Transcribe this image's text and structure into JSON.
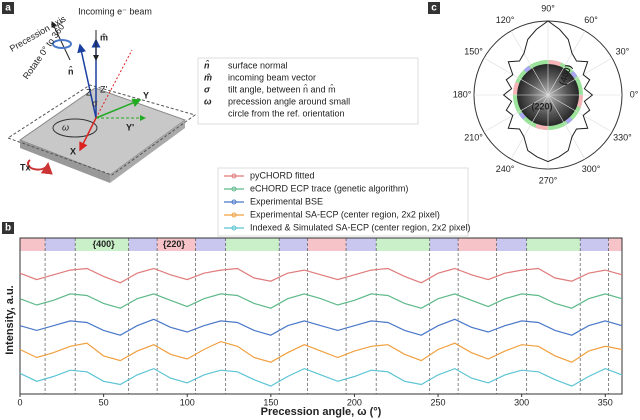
{
  "panels": {
    "a": {
      "label": "a",
      "precession_axis": "Precession axis",
      "rotate": "Rotate 0° to 360°",
      "beam": "Incoming e⁻ beam",
      "n": "n̂",
      "m": "m̂",
      "z": "Z",
      "z2": "Z'",
      "sigma": "σ",
      "x": "X",
      "y": "Y",
      "y2": "Y'",
      "omega": "ω",
      "tx": "Tx",
      "symbol_legend": [
        {
          "symbol": "n̂",
          "text": "surface normal"
        },
        {
          "symbol": "m̂",
          "text": "incoming beam vector"
        },
        {
          "symbol": "σ",
          "text": "tilt angle, between n̂ and m̂"
        },
        {
          "symbol": "ω",
          "text": "precession angle around small"
        },
        {
          "symbol": "",
          "text": "circle from the ref. orientation"
        }
      ]
    },
    "b": {
      "label": "b"
    },
    "c": {
      "label": "c"
    }
  },
  "chart_data": [
    {
      "type": "line",
      "xlabel": "Precession angle, ω (°)",
      "ylabel": "Intensity, a.u.",
      "x": [
        0,
        10,
        20,
        30,
        40,
        50,
        60,
        70,
        80,
        90,
        100,
        110,
        120,
        130,
        140,
        150,
        160,
        170,
        180,
        190,
        200,
        210,
        220,
        230,
        240,
        250,
        260,
        270,
        280,
        290,
        300,
        310,
        320,
        330,
        340,
        350,
        360
      ],
      "xlim": [
        0,
        360
      ],
      "xticks": [
        0,
        50,
        100,
        150,
        200,
        250,
        300,
        350
      ],
      "ylim": [
        0,
        9
      ],
      "series": [
        {
          "name": "pyCHORD fitted",
          "color": "#e07b7b",
          "values": [
            7.6,
            7.2,
            7.5,
            7.8,
            7.9,
            7.4,
            7.0,
            7.6,
            7.9,
            7.5,
            7.2,
            7.6,
            7.8,
            7.9,
            7.3,
            7.1,
            7.6,
            7.8,
            7.5,
            7.2,
            7.5,
            7.8,
            7.9,
            7.4,
            7.0,
            7.6,
            7.9,
            7.5,
            7.2,
            7.6,
            7.8,
            7.9,
            7.3,
            7.1,
            7.6,
            7.8,
            7.5
          ]
        },
        {
          "name": "eCHORD ECP trace (genetic algorithm)",
          "color": "#5fb98a",
          "values": [
            6.0,
            5.6,
            5.9,
            6.3,
            6.2,
            5.7,
            5.4,
            6.0,
            6.3,
            5.9,
            5.5,
            6.0,
            6.3,
            6.2,
            5.7,
            5.4,
            6.0,
            6.3,
            6.0,
            5.6,
            5.9,
            6.3,
            6.2,
            5.7,
            5.4,
            6.0,
            6.3,
            5.9,
            5.5,
            6.0,
            6.3,
            6.2,
            5.7,
            5.4,
            6.0,
            6.3,
            6.0
          ]
        },
        {
          "name": "Experimental BSE",
          "color": "#4a78c8",
          "values": [
            4.3,
            4.0,
            4.3,
            4.6,
            4.5,
            4.0,
            3.7,
            4.3,
            4.7,
            4.2,
            3.9,
            4.3,
            4.6,
            4.5,
            4.0,
            3.7,
            4.3,
            4.6,
            4.3,
            4.0,
            4.3,
            4.6,
            4.5,
            4.0,
            3.7,
            4.3,
            4.7,
            4.2,
            3.9,
            4.3,
            4.6,
            4.5,
            4.0,
            3.7,
            4.3,
            4.6,
            4.3
          ]
        },
        {
          "name": "Experimental SA-ECP (center region, 2x2 pixel)",
          "color": "#f0a040",
          "values": [
            2.8,
            2.3,
            2.6,
            3.0,
            3.2,
            2.4,
            2.1,
            2.7,
            3.1,
            2.5,
            2.2,
            2.8,
            3.3,
            3.0,
            2.3,
            2.0,
            2.6,
            3.1,
            2.7,
            2.3,
            2.7,
            3.0,
            3.1,
            2.5,
            2.1,
            2.8,
            3.2,
            2.6,
            2.2,
            2.7,
            3.1,
            3.0,
            2.4,
            2.0,
            2.7,
            3.0,
            2.8
          ]
        },
        {
          "name": "Indexed & Simulated SA-ECP (center region, 2x2 pixel)",
          "color": "#5cc4d4",
          "values": [
            1.3,
            0.8,
            1.1,
            1.5,
            1.4,
            0.8,
            0.6,
            1.2,
            1.6,
            1.0,
            0.7,
            1.2,
            1.5,
            1.4,
            0.9,
            0.5,
            1.1,
            1.6,
            1.2,
            0.8,
            1.1,
            1.5,
            1.4,
            0.8,
            0.6,
            1.2,
            1.6,
            1.0,
            0.7,
            1.2,
            1.5,
            1.4,
            0.9,
            0.5,
            1.1,
            1.6,
            1.2
          ]
        }
      ],
      "regions": [
        {
          "start": 0,
          "end": 15,
          "color": "#f6c4c8"
        },
        {
          "start": 15,
          "end": 33,
          "color": "#c9c6f0"
        },
        {
          "start": 33,
          "end": 65,
          "color": "#c9f0c9"
        },
        {
          "start": 65,
          "end": 82,
          "color": "#c9c6f0"
        },
        {
          "start": 82,
          "end": 105,
          "color": "#f6c4c8"
        },
        {
          "start": 105,
          "end": 123,
          "color": "#c9c6f0"
        },
        {
          "start": 123,
          "end": 155,
          "color": "#c9f0c9"
        },
        {
          "start": 155,
          "end": 172,
          "color": "#c9c6f0"
        },
        {
          "start": 172,
          "end": 195,
          "color": "#f6c4c8"
        },
        {
          "start": 195,
          "end": 213,
          "color": "#c9c6f0"
        },
        {
          "start": 213,
          "end": 245,
          "color": "#c9f0c9"
        },
        {
          "start": 245,
          "end": 262,
          "color": "#c9c6f0"
        },
        {
          "start": 262,
          "end": 285,
          "color": "#f6c4c8"
        },
        {
          "start": 285,
          "end": 303,
          "color": "#c9c6f0"
        },
        {
          "start": 303,
          "end": 335,
          "color": "#c9f0c9"
        },
        {
          "start": 335,
          "end": 352,
          "color": "#c9c6f0"
        },
        {
          "start": 352,
          "end": 360,
          "color": "#f6c4c8"
        }
      ],
      "vlines": [
        15,
        33,
        65,
        82,
        105,
        123,
        155,
        172,
        195,
        213,
        245,
        262,
        285,
        303,
        335,
        352
      ],
      "annotations": [
        {
          "text": "{400}",
          "x": 50
        },
        {
          "text": "{220}",
          "x": 92
        }
      ]
    },
    {
      "type": "polar",
      "color": "#222222",
      "rlim": [
        0,
        10
      ],
      "theta": [
        0,
        10,
        20,
        30,
        40,
        50,
        60,
        70,
        80,
        90,
        100,
        110,
        120,
        130,
        140,
        150,
        160,
        170,
        180,
        190,
        200,
        210,
        220,
        230,
        240,
        250,
        260,
        270,
        280,
        290,
        300,
        310,
        320,
        330,
        340,
        350
      ],
      "values": [
        6,
        5,
        6,
        5.5,
        7,
        6,
        6.5,
        8,
        9,
        10,
        9,
        8,
        6.5,
        6,
        7,
        5.5,
        6,
        5,
        6,
        5,
        6,
        5.5,
        7,
        6,
        6.5,
        8,
        8.5,
        9,
        8.5,
        8,
        6.5,
        6,
        7,
        5.5,
        6,
        5
      ],
      "thetaticks": [
        {
          "value": 0,
          "label": "0°"
        },
        {
          "value": 30,
          "label": "30°"
        },
        {
          "value": 60,
          "label": "60°"
        },
        {
          "value": 90,
          "label": "90°"
        },
        {
          "value": 120,
          "label": "120°"
        },
        {
          "value": 150,
          "label": "150°"
        },
        {
          "value": 180,
          "label": "180°"
        },
        {
          "value": 210,
          "label": "210°"
        },
        {
          "value": 240,
          "label": "240°"
        },
        {
          "value": 270,
          "label": "270°"
        },
        {
          "value": 300,
          "label": "300°"
        },
        {
          "value": 330,
          "label": "330°"
        }
      ],
      "annotations": [
        {
          "text": "(400)"
        },
        {
          "text": "(220)"
        }
      ]
    }
  ]
}
